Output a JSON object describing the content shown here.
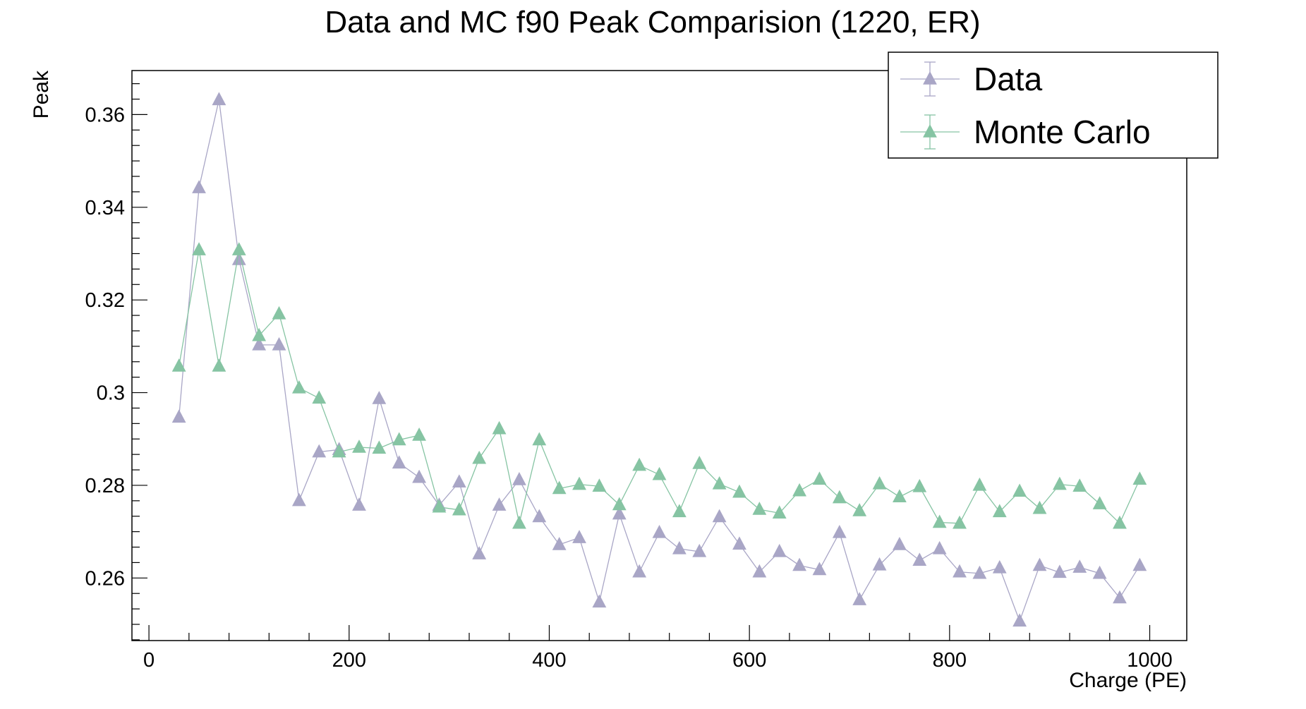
{
  "chart_data": {
    "type": "scatter",
    "title": "Data and MC f90 Peak Comparision (1220, ER)",
    "xlabel": "Charge (PE)",
    "ylabel": "Peak",
    "xlim": [
      -17,
      1037
    ],
    "ylim": [
      0.2465,
      0.3695
    ],
    "x_ticks": [
      0,
      200,
      400,
      600,
      800,
      1000
    ],
    "x_tick_labels": [
      "0",
      "200",
      "400",
      "600",
      "800",
      "1000"
    ],
    "y_ticks": [
      0.26,
      0.28,
      0.3,
      0.32,
      0.34,
      0.36
    ],
    "y_tick_labels": [
      "0.26",
      "0.28",
      "0.3",
      "0.32",
      "0.34",
      "0.36"
    ],
    "grid": false,
    "legend_position": "top-right",
    "marker": "triangle-up",
    "x": [
      30,
      50,
      70,
      90,
      110,
      130,
      150,
      170,
      190,
      210,
      230,
      250,
      270,
      290,
      310,
      330,
      350,
      370,
      390,
      410,
      430,
      450,
      470,
      490,
      510,
      530,
      550,
      570,
      590,
      610,
      630,
      650,
      670,
      690,
      710,
      730,
      750,
      770,
      790,
      810,
      830,
      850,
      870,
      890,
      910,
      930,
      950,
      970,
      990
    ],
    "series": [
      {
        "name": "Data",
        "color": "#a9a6c6",
        "values": [
          0.2947,
          0.3442,
          0.3632,
          0.3287,
          0.3103,
          0.3103,
          0.2767,
          0.2872,
          0.2877,
          0.2757,
          0.2987,
          0.2848,
          0.2817,
          0.2757,
          0.2807,
          0.2652,
          0.2757,
          0.2812,
          0.2732,
          0.2672,
          0.2687,
          0.2548,
          0.2738,
          0.2613,
          0.2698,
          0.2663,
          0.2657,
          0.2732,
          0.2673,
          0.2613,
          0.2657,
          0.2627,
          0.2618,
          0.2698,
          0.2553,
          0.2628,
          0.2672,
          0.2638,
          0.2663,
          0.2613,
          0.261,
          0.2622,
          0.2507,
          0.2627,
          0.2612,
          0.2623,
          0.261,
          0.2557,
          0.2627
        ]
      },
      {
        "name": "Monte Carlo",
        "color": "#86c4a3",
        "values": [
          0.3057,
          0.3308,
          0.3057,
          0.3308,
          0.3123,
          0.317,
          0.301,
          0.2988,
          0.2872,
          0.2882,
          0.288,
          0.2898,
          0.2908,
          0.2753,
          0.2747,
          0.2858,
          0.2922,
          0.2718,
          0.2898,
          0.2793,
          0.2802,
          0.2798,
          0.2758,
          0.2843,
          0.2823,
          0.2743,
          0.2847,
          0.2803,
          0.2785,
          0.2748,
          0.274,
          0.2788,
          0.2813,
          0.2773,
          0.2745,
          0.2803,
          0.2775,
          0.2797,
          0.272,
          0.2718,
          0.28,
          0.2743,
          0.2787,
          0.275,
          0.2802,
          0.2798,
          0.276,
          0.2718,
          0.2813
        ]
      }
    ]
  }
}
